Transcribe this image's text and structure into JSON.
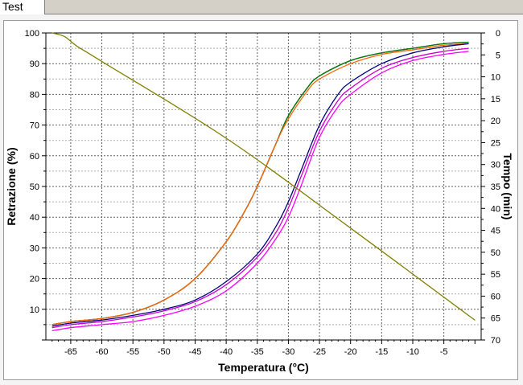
{
  "tab": {
    "label": "Test"
  },
  "chart_data": {
    "type": "line",
    "xlabel": "Temperatura (°C)",
    "ylabel": "Retrazione (%)",
    "y2label": "Tempo (min)",
    "xlim": [
      -69,
      1
    ],
    "ylim": [
      0,
      100
    ],
    "y2lim": [
      0,
      70
    ],
    "y2_inverted": true,
    "xticks": [
      -65,
      -60,
      -55,
      -50,
      -45,
      -40,
      -35,
      -30,
      -25,
      -20,
      -15,
      -10,
      -5
    ],
    "yticks": [
      10,
      20,
      30,
      40,
      50,
      60,
      70,
      80,
      90,
      100
    ],
    "y2ticks": [
      0,
      5,
      10,
      15,
      20,
      25,
      30,
      35,
      40,
      45,
      50,
      55,
      60,
      65,
      70
    ],
    "grid": true,
    "series": [
      {
        "axis": "left",
        "color": "#000080",
        "x": [
          -68,
          -65,
          -60,
          -55,
          -50,
          -45,
          -40,
          -37,
          -35,
          -32,
          -30,
          -27,
          -25,
          -20,
          -15,
          -10,
          -5,
          -1
        ],
        "y": [
          5,
          6,
          7,
          9,
          13,
          20,
          32,
          42,
          50,
          64,
          73,
          82,
          86,
          91,
          93.5,
          95,
          96.5,
          97
        ]
      },
      {
        "axis": "left",
        "color": "#008000",
        "x": [
          -68,
          -65,
          -60,
          -55,
          -50,
          -45,
          -40,
          -37,
          -35,
          -32,
          -30,
          -27,
          -25,
          -20,
          -15,
          -10,
          -5,
          -1
        ],
        "y": [
          5,
          6,
          7,
          9,
          13,
          20,
          32,
          42,
          50,
          64,
          73,
          82,
          86,
          91,
          93.5,
          95,
          96.5,
          97
        ]
      },
      {
        "axis": "left",
        "color": "#ff6600",
        "x": [
          -68,
          -65,
          -60,
          -55,
          -50,
          -45,
          -40,
          -37,
          -35,
          -32,
          -30,
          -27,
          -25,
          -20,
          -15,
          -10,
          -5,
          -1
        ],
        "y": [
          5,
          6,
          7,
          9,
          13,
          20,
          32,
          42,
          50,
          64,
          72,
          81,
          85,
          90,
          93,
          94.5,
          96,
          96.5
        ]
      },
      {
        "axis": "left",
        "color": "#000080",
        "x": [
          -68,
          -65,
          -60,
          -55,
          -50,
          -45,
          -40,
          -35,
          -32,
          -30,
          -28,
          -25,
          -22,
          -20,
          -15,
          -10,
          -5,
          -1
        ],
        "y": [
          4.5,
          5.5,
          6.5,
          8,
          10,
          13,
          19,
          28,
          37,
          45,
          55,
          70,
          80,
          84,
          90,
          93.5,
          95.5,
          96.5
        ]
      },
      {
        "axis": "left",
        "color": "#cc00cc",
        "x": [
          -68,
          -65,
          -60,
          -55,
          -50,
          -45,
          -40,
          -35,
          -32,
          -30,
          -28,
          -25,
          -22,
          -20,
          -15,
          -10,
          -5,
          -1
        ],
        "y": [
          4,
          5,
          6,
          7.5,
          9.5,
          12.5,
          18,
          27,
          35,
          43,
          53,
          68,
          78,
          82,
          88.5,
          92,
          94,
          95
        ]
      },
      {
        "axis": "left",
        "color": "#ff00ff",
        "x": [
          -68,
          -65,
          -60,
          -55,
          -50,
          -45,
          -40,
          -35,
          -32,
          -30,
          -28,
          -25,
          -22,
          -20,
          -15,
          -10,
          -5,
          -1
        ],
        "y": [
          3,
          4,
          5,
          6,
          8,
          11,
          16,
          25,
          33,
          40,
          50,
          66,
          76,
          80,
          87,
          91,
          93,
          94
        ]
      },
      {
        "axis": "right",
        "color": "#808000",
        "x": [
          -68,
          -66,
          -64,
          -60,
          -40,
          -20,
          0
        ],
        "y": [
          0,
          0.8,
          3,
          6.5,
          24,
          44.5,
          65.5
        ]
      }
    ]
  }
}
